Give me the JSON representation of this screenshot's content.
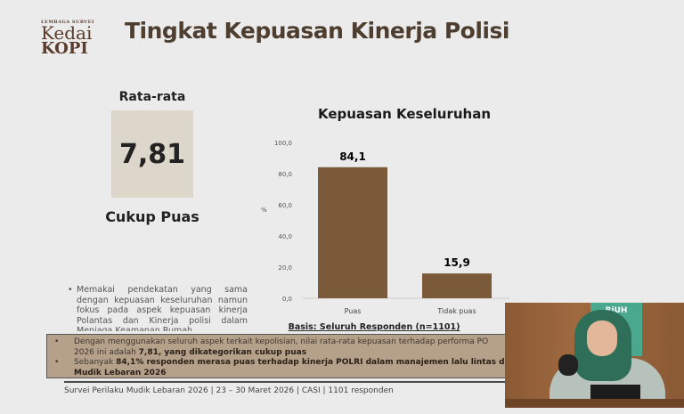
{
  "logo": {
    "top": "LEMBAGA SURVEI",
    "line1": "Kedai",
    "line2": "KOPI"
  },
  "title": "Tingkat Kepuasan Kinerja Polisi",
  "average": {
    "label": "Rata-rata",
    "value": "7,81",
    "category": "Cukup Puas"
  },
  "note": "Memakai pendekatan yang sama dengan kepuasan keseluruhan namun fokus pada aspek kepuasan kinerja Polantas dan Kinerja polisi dalam Menjaga Keamanan Rumah",
  "chart_data": {
    "type": "bar",
    "title": "Kepuasan Keseluruhan",
    "ylabel": "%",
    "categories": [
      "Puas",
      "Tidak puas"
    ],
    "values": [
      84.1,
      15.9
    ],
    "data_labels": [
      "84,1",
      "15,9"
    ],
    "yticks": [
      "0,0",
      "20,0",
      "40,0",
      "60,0",
      "80,0",
      "100,0"
    ],
    "ylim": [
      0,
      100
    ],
    "grid": false,
    "bar_color": "#7a5a38",
    "footnote": "Basis: Seluruh Responden (n=1101)"
  },
  "summary": {
    "b1_pre": "Dengan menggunakan seluruh aspek terkait kepolisian, nilai rata-rata kepuasan terhadap performa PO",
    "b1_l2_pre": "2026 ini adalah ",
    "b1_bold": "7,81, yang dikategorikan cukup puas",
    "b2_pre": "Sebanyak ",
    "b2_bold": "84,1% responden merasa puas terhadap kinerja POLRI dalam manajemen lalu lintas dan m",
    "b2_l2": "Mudik Lebaran 2026"
  },
  "footer": "Survei Perilaku Mudik Lebaran 2026 | 23 – 30 Maret 2026 | CASI | 1101 responden",
  "video": {
    "sign": "RiUH"
  }
}
